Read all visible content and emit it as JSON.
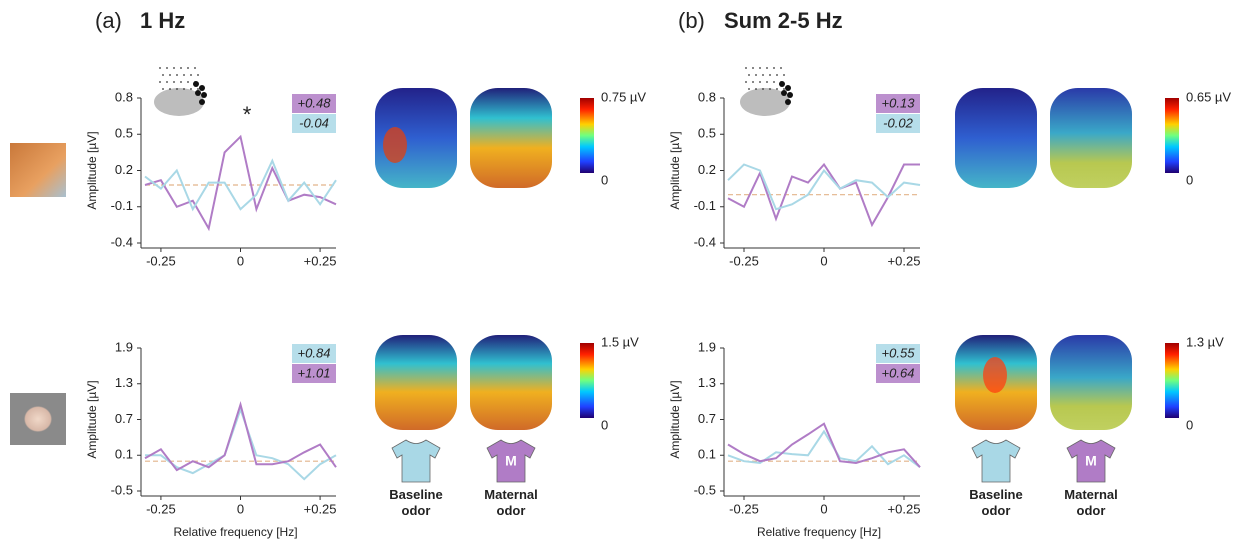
{
  "panels": [
    {
      "label": "(a)",
      "title": "1 Hz"
    },
    {
      "label": "(b)",
      "title": "Sum 2-5 Hz"
    }
  ],
  "shirt_logo": "M",
  "chart_data": [
    {
      "type": "line",
      "ylabel": "Amplitude [µV]",
      "annotation": "*",
      "x": [
        -0.3,
        -0.25,
        -0.2,
        -0.15,
        -0.1,
        -0.05,
        0,
        0.05,
        0.1,
        0.15,
        0.2,
        0.25,
        0.3
      ],
      "xlim": [
        -0.3,
        0.3
      ],
      "xticks": [
        -0.25,
        0,
        {
          "value": 0.25,
          "label": "+0.25"
        }
      ],
      "ylim": [
        -0.4,
        0.8
      ],
      "yticks": [
        -0.4,
        -0.1,
        0.2,
        0.5,
        0.8
      ],
      "reference_line": 0.08,
      "colorbar": {
        "min": 0,
        "max": {
          "value": 0.75,
          "label": "0.75 µV"
        }
      },
      "series": [
        {
          "color": "#b07cc6",
          "label": {
            "value": 0.48,
            "label": "+0.48"
          },
          "values": [
            0.08,
            0.12,
            -0.1,
            -0.05,
            -0.28,
            0.35,
            0.48,
            -0.12,
            0.22,
            -0.05,
            0.0,
            -0.02,
            -0.08
          ]
        },
        {
          "color": "#a9d8e6",
          "label": {
            "value": -0.04,
            "label": "-0.04"
          },
          "values": [
            0.15,
            0.05,
            0.2,
            -0.12,
            0.1,
            0.1,
            -0.12,
            0.0,
            0.28,
            -0.05,
            0.1,
            -0.08,
            0.12
          ]
        }
      ]
    },
    {
      "type": "line",
      "ylabel": "Amplitude [µV]",
      "xlabel": "Relative frequency [Hz]",
      "x": [
        -0.3,
        -0.25,
        -0.2,
        -0.15,
        -0.1,
        -0.05,
        0,
        0.05,
        0.1,
        0.15,
        0.2,
        0.25,
        0.3
      ],
      "xlim": [
        -0.3,
        0.3
      ],
      "xticks": [
        -0.25,
        0,
        {
          "value": 0.25,
          "label": "+0.25"
        }
      ],
      "ylim": [
        -0.5,
        1.9
      ],
      "yticks": [
        -0.5,
        0.1,
        0.7,
        1.3,
        1.9
      ],
      "reference_line": 0,
      "colorbar": {
        "min": 0,
        "max": {
          "value": 1.5,
          "label": "1.5 µV"
        }
      },
      "series": [
        {
          "name": "Baseline odor",
          "color": "#a9d8e6",
          "label": {
            "value": 0.84,
            "label": "+0.84"
          },
          "values": [
            0.1,
            0.1,
            -0.1,
            -0.2,
            -0.05,
            0.1,
            0.87,
            0.1,
            0.05,
            -0.05,
            -0.3,
            -0.05,
            0.1
          ]
        },
        {
          "name": "Maternal odor",
          "color": "#b07cc6",
          "label": {
            "value": 1.01,
            "label": "+1.01"
          },
          "values": [
            0.05,
            0.2,
            -0.15,
            0.0,
            -0.1,
            0.1,
            0.95,
            -0.05,
            -0.05,
            0.0,
            0.15,
            0.28,
            -0.1
          ]
        }
      ]
    },
    {
      "type": "line",
      "ylabel": "Amplitude [µV]",
      "x": [
        -0.3,
        -0.25,
        -0.2,
        -0.15,
        -0.1,
        -0.05,
        0,
        0.05,
        0.1,
        0.15,
        0.2,
        0.25,
        0.3
      ],
      "xlim": [
        -0.3,
        0.3
      ],
      "xticks": [
        -0.25,
        0,
        {
          "value": 0.25,
          "label": "+0.25"
        }
      ],
      "ylim": [
        -0.4,
        0.8
      ],
      "yticks": [
        -0.4,
        -0.1,
        0.2,
        0.5,
        0.8
      ],
      "reference_line": 0,
      "colorbar": {
        "min": 0,
        "max": {
          "value": 0.65,
          "label": "0.65 µV"
        }
      },
      "series": [
        {
          "color": "#b07cc6",
          "label": {
            "value": 0.13,
            "label": "+0.13"
          },
          "values": [
            -0.03,
            -0.1,
            0.18,
            -0.2,
            0.15,
            0.1,
            0.25,
            0.05,
            0.1,
            -0.25,
            -0.02,
            0.25,
            0.25
          ]
        },
        {
          "color": "#a9d8e6",
          "label": {
            "value": -0.02,
            "label": "-0.02"
          },
          "values": [
            0.12,
            0.25,
            0.2,
            -0.12,
            -0.08,
            0.0,
            0.2,
            0.05,
            0.12,
            0.1,
            -0.02,
            0.1,
            0.08
          ]
        }
      ]
    },
    {
      "type": "line",
      "ylabel": "Amplitude [µV]",
      "xlabel": "Relative frequency [Hz]",
      "x": [
        -0.3,
        -0.25,
        -0.2,
        -0.15,
        -0.1,
        -0.05,
        0,
        0.05,
        0.1,
        0.15,
        0.2,
        0.25,
        0.3
      ],
      "xlim": [
        -0.3,
        0.3
      ],
      "xticks": [
        -0.25,
        0,
        {
          "value": 0.25,
          "label": "+0.25"
        }
      ],
      "ylim": [
        -0.5,
        1.9
      ],
      "yticks": [
        -0.5,
        0.1,
        0.7,
        1.3,
        1.9
      ],
      "reference_line": 0,
      "colorbar": {
        "min": 0,
        "max": {
          "value": 1.3,
          "label": "1.3 µV"
        }
      },
      "series": [
        {
          "name": "Baseline odor",
          "color": "#a9d8e6",
          "label": {
            "value": 0.55,
            "label": "+0.55"
          },
          "values": [
            0.1,
            0.0,
            -0.03,
            0.15,
            0.12,
            0.1,
            0.5,
            0.05,
            0.0,
            0.25,
            -0.05,
            0.1,
            -0.1
          ]
        },
        {
          "name": "Maternal odor",
          "color": "#b07cc6",
          "label": {
            "value": 0.64,
            "label": "+0.64"
          },
          "values": [
            0.28,
            0.12,
            0.0,
            0.05,
            0.28,
            0.45,
            0.63,
            0.0,
            -0.03,
            0.05,
            0.15,
            0.2,
            -0.1
          ]
        }
      ]
    }
  ]
}
